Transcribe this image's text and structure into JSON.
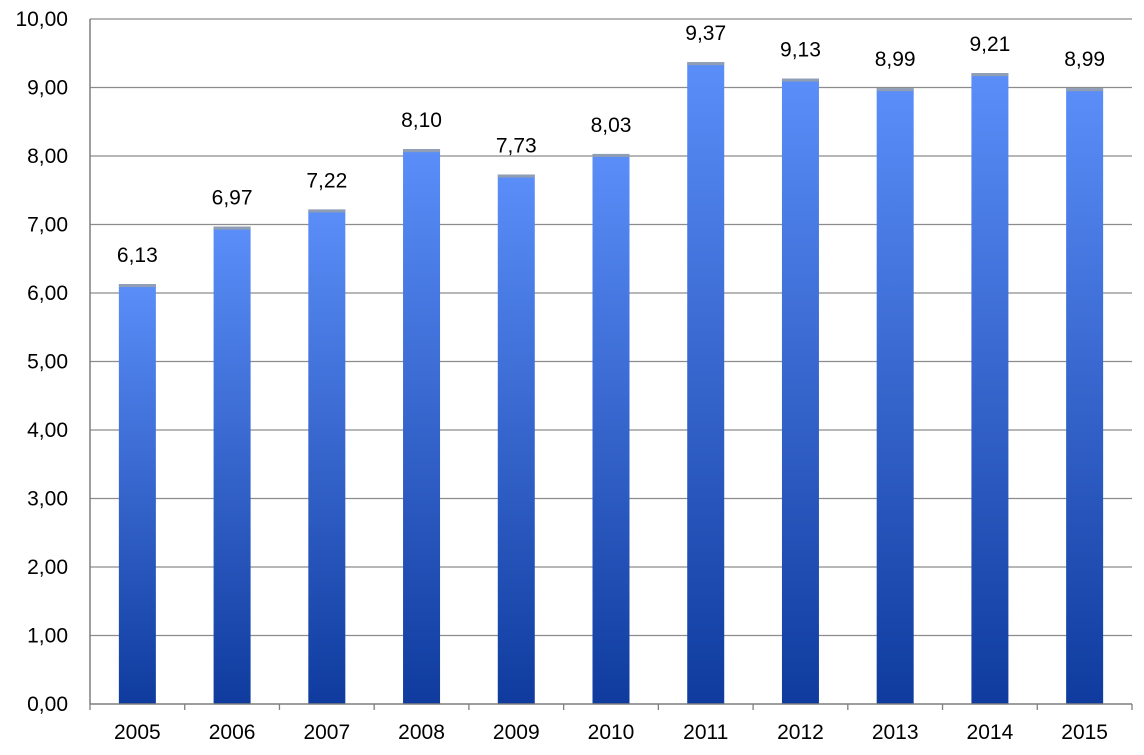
{
  "chart_data": {
    "type": "bar",
    "title": "",
    "xlabel": "",
    "ylabel": "",
    "categories": [
      "2005",
      "2006",
      "2007",
      "2008",
      "2009",
      "2010",
      "2011",
      "2012",
      "2013",
      "2014",
      "2015"
    ],
    "values": [
      6.13,
      6.97,
      7.22,
      8.1,
      7.73,
      8.03,
      9.37,
      9.13,
      8.99,
      9.21,
      8.99
    ],
    "value_labels": [
      "6,13",
      "6,97",
      "7,22",
      "8,10",
      "7,73",
      "8,03",
      "9,37",
      "9,13",
      "8,99",
      "9,21",
      "8,99"
    ],
    "ylim": [
      0,
      10
    ],
    "yticks": [
      0,
      1,
      2,
      3,
      4,
      5,
      6,
      7,
      8,
      9,
      10
    ],
    "ytick_labels": [
      "0,00",
      "1,00",
      "2,00",
      "3,00",
      "4,00",
      "5,00",
      "6,00",
      "7,00",
      "8,00",
      "9,00",
      "10,00"
    ],
    "grid": true,
    "legend": "none",
    "colors": {
      "bar_top": "#5b8ef9",
      "bar_bottom": "#0f3b9e",
      "gridline": "#8c8c8c",
      "axis": "#7f7f7f"
    }
  }
}
